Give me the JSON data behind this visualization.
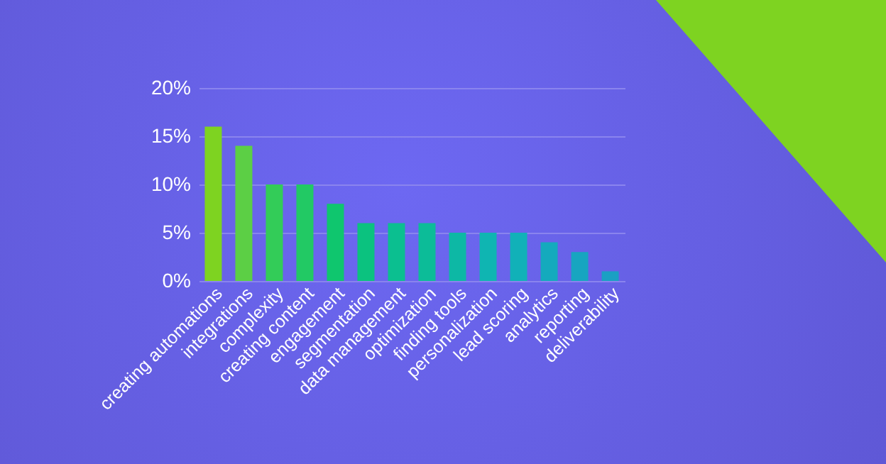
{
  "chart_data": {
    "type": "bar",
    "categories": [
      "creating automations",
      "integrations",
      "complexity",
      "creating content",
      "engagement",
      "segmentation",
      "data management",
      "optimization",
      "finding tools",
      "personalization",
      "lead scoring",
      "analytics",
      "reporting",
      "deliverability"
    ],
    "values": [
      16,
      14,
      10,
      10,
      8,
      6,
      6,
      6,
      5,
      5,
      5,
      4,
      3,
      1
    ],
    "colors": [
      "#7ed321",
      "#5ccf45",
      "#33cc58",
      "#22c964",
      "#0fc66e",
      "#0bc27f",
      "#0bbf90",
      "#0cbc98",
      "#0db8a5",
      "#0fb5b2",
      "#11b1b8",
      "#14aabd",
      "#17a5c0",
      "#1aa0c3"
    ],
    "ylim": [
      0,
      20
    ],
    "yticks": [
      {
        "value": 0,
        "label": "0%"
      },
      {
        "value": 5,
        "label": "5%"
      },
      {
        "value": 10,
        "label": "10%"
      },
      {
        "value": 15,
        "label": "15%"
      },
      {
        "value": 20,
        "label": "20%"
      }
    ],
    "grid": "y"
  }
}
